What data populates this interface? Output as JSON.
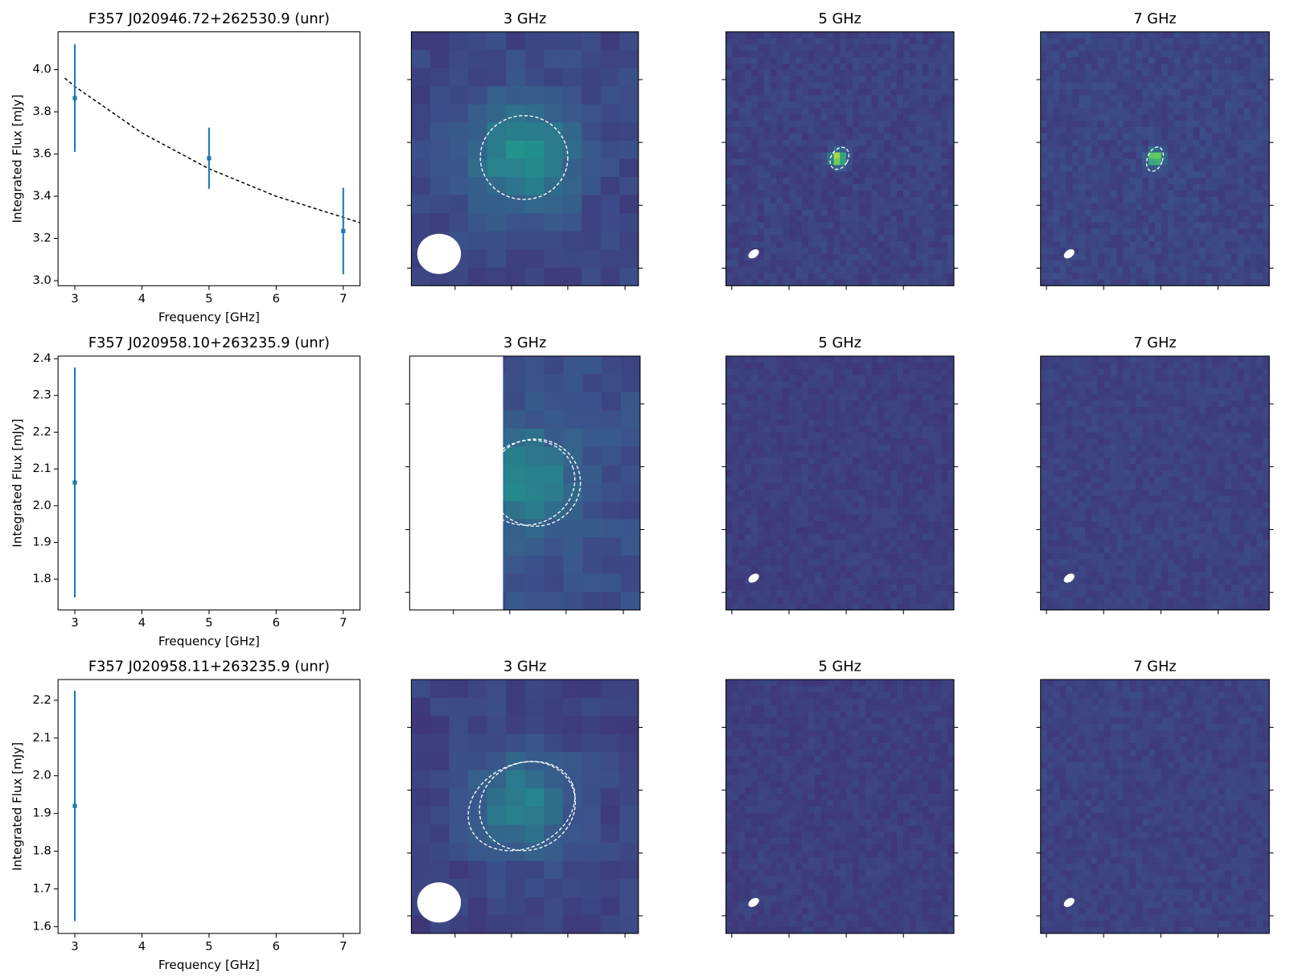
{
  "chart_data": [
    {
      "type": "errorbar",
      "title": "F357 J020946.72+262530.9 (unr)",
      "xlabel": "Frequency [GHz]",
      "ylabel": "Integrated Flux [mJy]",
      "xlim": [
        2.75,
        7.25
      ],
      "xticks": [
        3,
        4,
        5,
        6,
        7
      ],
      "ylim": [
        2.976,
        4.179
      ],
      "yticks": [
        {
          "value": 3.0,
          "label": "3.0"
        },
        3.2,
        3.4,
        3.6,
        3.8,
        {
          "value": 4.0,
          "label": "4.0"
        }
      ],
      "series": [
        {
          "color": "#1f77b4",
          "x": [
            3,
            5,
            7
          ],
          "values": [
            3.865,
            3.58,
            3.235
          ],
          "errors": [
            0.255,
            0.145,
            0.205
          ]
        }
      ],
      "fit": {
        "color": "#000000",
        "dashed": true,
        "x": [
          2.85,
          3,
          4,
          5,
          6,
          7,
          7.25
        ],
        "values": [
          3.96,
          3.92,
          3.7,
          3.53,
          3.4,
          3.3,
          3.275
        ]
      }
    },
    {
      "type": "image",
      "title": "3 GHz"
    },
    {
      "type": "image",
      "title": "5 GHz"
    },
    {
      "type": "image",
      "title": "7 GHz"
    },
    {
      "type": "errorbar",
      "title": "F357 J020958.10+263235.9 (unr)",
      "xlabel": "Frequency [GHz]",
      "ylabel": "Integrated Flux [mJy]",
      "xlim": [
        2.75,
        7.25
      ],
      "xticks": [
        3,
        4,
        5,
        6,
        7
      ],
      "ylim": [
        1.716,
        2.407
      ],
      "yticks": [
        1.8,
        1.9,
        {
          "value": 2.0,
          "label": "2.0"
        },
        2.1,
        2.2,
        2.3,
        2.4
      ],
      "series": [
        {
          "color": "#1f77b4",
          "x": [
            3
          ],
          "values": [
            2.063
          ],
          "errors": [
            0.313
          ]
        }
      ]
    },
    {
      "type": "image",
      "title": "3 GHz"
    },
    {
      "type": "image",
      "title": "5 GHz"
    },
    {
      "type": "image",
      "title": "7 GHz"
    },
    {
      "type": "errorbar",
      "title": "F357 J020958.11+263235.9 (unr)",
      "xlabel": "Frequency [GHz]",
      "ylabel": "Integrated Flux [mJy]",
      "xlim": [
        2.75,
        7.25
      ],
      "xticks": [
        3,
        4,
        5,
        6,
        7
      ],
      "ylim": [
        1.582,
        2.255
      ],
      "yticks": [
        1.6,
        1.7,
        1.8,
        1.9,
        {
          "value": 2.0,
          "label": "2.0"
        },
        2.1,
        2.2
      ],
      "series": [
        {
          "color": "#1f77b4",
          "x": [
            3
          ],
          "values": [
            1.92
          ],
          "errors": [
            0.305
          ]
        }
      ]
    },
    {
      "type": "image",
      "title": "3 GHz"
    },
    {
      "type": "image",
      "title": "5 GHz"
    },
    {
      "type": "image",
      "title": "7 GHz"
    }
  ]
}
